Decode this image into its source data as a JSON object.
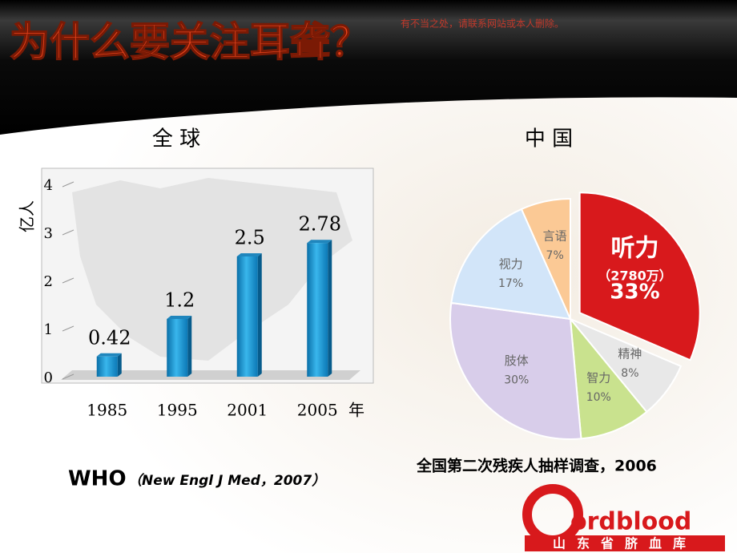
{
  "title": "为什么要关注耳聋？",
  "watermark": "有不当之处，请联系网站或本人删除。",
  "logo": {
    "brand": "ordblood",
    "name": "山东省脐血库"
  },
  "chart_data": [
    {
      "type": "bar",
      "title": "全 球",
      "y_label": "亿人",
      "x_unit": "年",
      "categories": [
        "1985",
        "1995",
        "2001",
        "2005"
      ],
      "values": [
        0.42,
        1.2,
        2.5,
        2.78
      ],
      "color": "#1a9ad6",
      "ylim": [
        0,
        4
      ],
      "yticks": [
        0,
        1,
        2,
        3,
        4
      ],
      "source": {
        "org": "WHO",
        "citation": "（New Engl J Med，2007）"
      }
    },
    {
      "type": "pie",
      "title": "中 国",
      "categories": [
        "听力",
        "精神",
        "智力",
        "肢体",
        "视力",
        "言语"
      ],
      "values": [
        33,
        8,
        10,
        30,
        17,
        7
      ],
      "value_labels": [
        "33%",
        "8%",
        "10%",
        "30%",
        "17%",
        "7%"
      ],
      "notes": [
        "（2780万）",
        null,
        null,
        null,
        null,
        null
      ],
      "colors": [
        "#d8191c",
        "#e8e8e8",
        "#c9e28e",
        "#d8cdea",
        "#d2e5f9",
        "#fbc995"
      ],
      "explode": [
        true,
        false,
        false,
        false,
        false,
        false
      ],
      "source": "全国第二次残疾人抽样调查，2006"
    }
  ]
}
